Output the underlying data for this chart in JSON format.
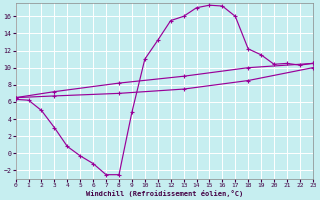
{
  "bg_color": "#c6eef0",
  "line_color": "#990099",
  "grid_color": "#ffffff",
  "xlim": [
    0,
    23
  ],
  "ylim": [
    -3,
    17.5
  ],
  "xticks": [
    0,
    1,
    2,
    3,
    4,
    5,
    6,
    7,
    8,
    9,
    10,
    11,
    12,
    13,
    14,
    15,
    16,
    17,
    18,
    19,
    20,
    21,
    22,
    23
  ],
  "yticks": [
    -2,
    0,
    2,
    4,
    6,
    8,
    10,
    12,
    14,
    16
  ],
  "xlabel": "Windchill (Refroidissement éolien,°C)",
  "line1_x": [
    0,
    1,
    2,
    3,
    4,
    5,
    6,
    7,
    8,
    9,
    10,
    11,
    12,
    13,
    14,
    15,
    16,
    17,
    18,
    19,
    20,
    21,
    22,
    23
  ],
  "line1_y": [
    6.3,
    6.2,
    5.0,
    3.0,
    0.8,
    -0.3,
    -1.2,
    -2.5,
    -2.5,
    4.8,
    11.0,
    13.2,
    15.5,
    16.0,
    17.0,
    17.3,
    17.2,
    16.0,
    12.2,
    11.5,
    10.4,
    10.5,
    10.3,
    10.5
  ],
  "line2_x": [
    0,
    3,
    8,
    13,
    18,
    23
  ],
  "line2_y": [
    6.5,
    7.2,
    8.2,
    9.0,
    10.0,
    10.5
  ],
  "line3_x": [
    0,
    3,
    8,
    13,
    18,
    23
  ],
  "line3_y": [
    6.5,
    6.7,
    7.0,
    7.5,
    8.5,
    10.0
  ]
}
